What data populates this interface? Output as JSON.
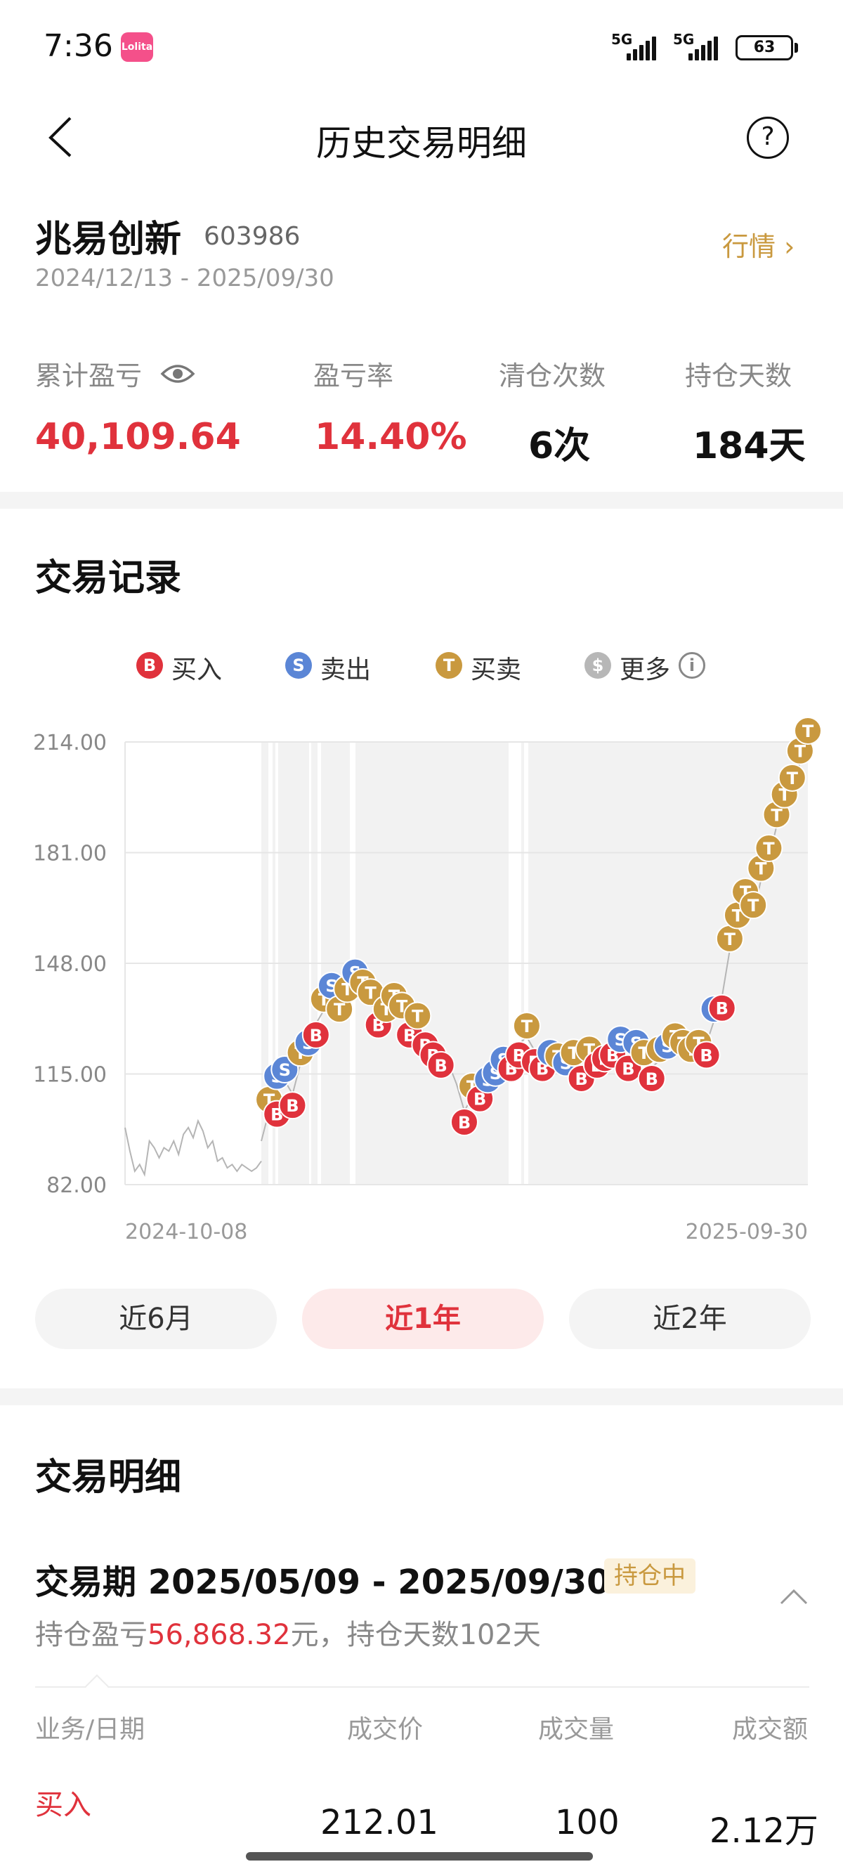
{
  "status": {
    "time": "7:36",
    "app_icon": "Lolita",
    "net1": "5G",
    "net2": "5G",
    "battery": "63"
  },
  "nav": {
    "title": "历史交易明细"
  },
  "stock": {
    "name": "兆易创新",
    "code": "603986",
    "range": "2024/12/13 - 2025/09/30",
    "market_link": "行情 ›"
  },
  "summary": {
    "items": [
      {
        "label": "累计盈亏",
        "value": "40,109.64",
        "color": "#e0323c"
      },
      {
        "label": "盈亏率",
        "value": "14.40%",
        "color": "#e0323c"
      },
      {
        "label": "清仓次数",
        "value": "6次",
        "color": "#111111"
      },
      {
        "label": "持仓天数",
        "value": "184天",
        "color": "#111111"
      }
    ]
  },
  "trade_record": {
    "title": "交易记录",
    "legend": [
      {
        "glyph": "B",
        "label": "买入",
        "color": "#e0323c"
      },
      {
        "glyph": "S",
        "label": "卖出",
        "color": "#5b86d6"
      },
      {
        "glyph": "T",
        "label": "买卖",
        "color": "#c9993f"
      },
      {
        "glyph": "$",
        "label": "更多",
        "color": "#b7b7b7"
      }
    ]
  },
  "chart_data": {
    "type": "line",
    "x_start_label": "2024-10-08",
    "x_end_label": "2025-09-30",
    "y_ticks": [
      "214.00",
      "181.00",
      "148.00",
      "115.00",
      "82.00"
    ],
    "ylim": [
      82,
      214
    ],
    "grid": true,
    "before_period_prices": [
      99,
      92,
      86,
      88,
      85,
      95,
      93,
      90,
      93,
      92,
      95,
      91,
      97,
      99,
      96,
      101,
      98,
      93,
      95,
      89,
      90,
      87,
      88,
      86,
      88,
      87,
      86,
      87,
      89
    ],
    "price_series": [
      95,
      104,
      111,
      113,
      109,
      118,
      121,
      130,
      134,
      138,
      131,
      137,
      142,
      139,
      136,
      133,
      131,
      135,
      132,
      130,
      129,
      127,
      124,
      121,
      118,
      112,
      104,
      108,
      111,
      110,
      112,
      116,
      120,
      124,
      126,
      122,
      120,
      118,
      117,
      115,
      118,
      117,
      119,
      121,
      123,
      124,
      122,
      120,
      121,
      118,
      117,
      119,
      120,
      123,
      121,
      119,
      121,
      124,
      131,
      138,
      152,
      159,
      166,
      162,
      173,
      179,
      189,
      195,
      200,
      208,
      214
    ],
    "markers": [
      {
        "i": 1,
        "t": "T"
      },
      {
        "i": 2,
        "t": "S"
      },
      {
        "i": 2,
        "t": "B"
      },
      {
        "i": 3,
        "t": "S"
      },
      {
        "i": 4,
        "t": "B"
      },
      {
        "i": 5,
        "t": "T"
      },
      {
        "i": 6,
        "t": "S"
      },
      {
        "i": 7,
        "t": "B"
      },
      {
        "i": 8,
        "t": "T"
      },
      {
        "i": 9,
        "t": "S"
      },
      {
        "i": 10,
        "t": "T"
      },
      {
        "i": 11,
        "t": "T"
      },
      {
        "i": 12,
        "t": "S"
      },
      {
        "i": 13,
        "t": "T"
      },
      {
        "i": 14,
        "t": "T"
      },
      {
        "i": 15,
        "t": "B"
      },
      {
        "i": 16,
        "t": "T"
      },
      {
        "i": 17,
        "t": "T"
      },
      {
        "i": 18,
        "t": "T"
      },
      {
        "i": 19,
        "t": "B"
      },
      {
        "i": 20,
        "t": "T"
      },
      {
        "i": 21,
        "t": "B"
      },
      {
        "i": 22,
        "t": "B"
      },
      {
        "i": 23,
        "t": "B"
      },
      {
        "i": 26,
        "t": "B"
      },
      {
        "i": 27,
        "t": "T"
      },
      {
        "i": 28,
        "t": "B"
      },
      {
        "i": 29,
        "t": "S"
      },
      {
        "i": 30,
        "t": "S"
      },
      {
        "i": 31,
        "t": "S"
      },
      {
        "i": 32,
        "t": "B"
      },
      {
        "i": 33,
        "t": "B"
      },
      {
        "i": 34,
        "t": "T"
      },
      {
        "i": 35,
        "t": "B"
      },
      {
        "i": 36,
        "t": "B"
      },
      {
        "i": 37,
        "t": "S"
      },
      {
        "i": 38,
        "t": "T"
      },
      {
        "i": 39,
        "t": "S"
      },
      {
        "i": 40,
        "t": "T"
      },
      {
        "i": 41,
        "t": "B"
      },
      {
        "i": 42,
        "t": "T"
      },
      {
        "i": 43,
        "t": "B"
      },
      {
        "i": 44,
        "t": "B"
      },
      {
        "i": 45,
        "t": "B"
      },
      {
        "i": 46,
        "t": "S"
      },
      {
        "i": 47,
        "t": "B"
      },
      {
        "i": 48,
        "t": "S"
      },
      {
        "i": 49,
        "t": "T"
      },
      {
        "i": 50,
        "t": "B"
      },
      {
        "i": 51,
        "t": "T"
      },
      {
        "i": 52,
        "t": "S"
      },
      {
        "i": 53,
        "t": "T"
      },
      {
        "i": 54,
        "t": "T"
      },
      {
        "i": 55,
        "t": "T"
      },
      {
        "i": 56,
        "t": "T"
      },
      {
        "i": 57,
        "t": "B"
      },
      {
        "i": 58,
        "t": "S"
      },
      {
        "i": 59,
        "t": "B"
      },
      {
        "i": 60,
        "t": "T"
      },
      {
        "i": 61,
        "t": "T"
      },
      {
        "i": 62,
        "t": "T"
      },
      {
        "i": 63,
        "t": "T"
      },
      {
        "i": 64,
        "t": "T"
      },
      {
        "i": 65,
        "t": "T"
      },
      {
        "i": 66,
        "t": "T"
      },
      {
        "i": 67,
        "t": "T"
      },
      {
        "i": 68,
        "t": "T"
      },
      {
        "i": 69,
        "t": "T"
      },
      {
        "i": 70,
        "t": "T"
      }
    ]
  },
  "ranges": [
    {
      "label": "近6月",
      "active": false
    },
    {
      "label": "近1年",
      "active": true
    },
    {
      "label": "近2年",
      "active": false
    }
  ],
  "detail": {
    "title": "交易明细",
    "period_title": "交易期 2025/05/09 - 2025/09/30",
    "badge": "持仓中",
    "sub_prefix": "持仓盈亏",
    "sub_profit": "56,868.32",
    "sub_suffix": "元，持仓天数102天",
    "headers": [
      "业务/日期",
      "成交价",
      "成交量",
      "成交额"
    ],
    "row": {
      "biz": "买入",
      "price": "212.01",
      "volume": "100",
      "amount": "2.12万"
    }
  }
}
